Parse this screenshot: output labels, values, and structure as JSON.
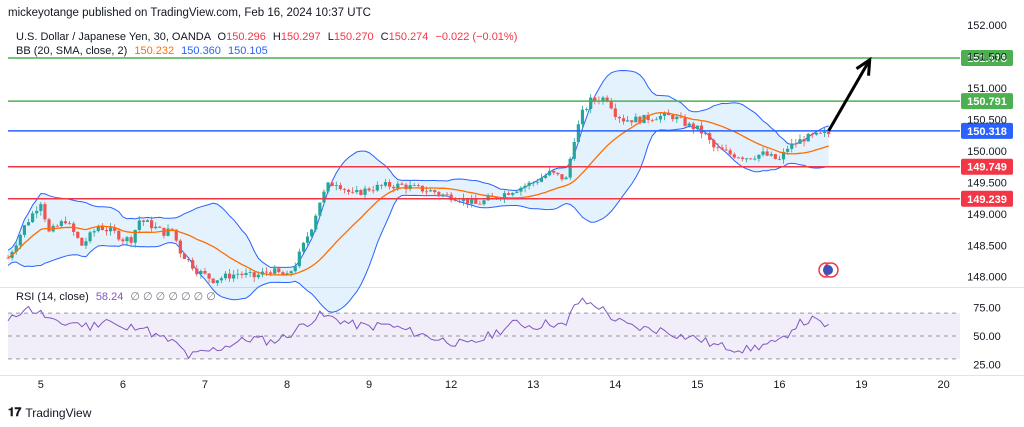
{
  "published": "mickeyotange published on TradingView.com, Feb 16, 2024 10:37 UTC",
  "legend": {
    "symbol": "U.S. Dollar / Japanese Yen, 30, OANDA",
    "ohlc": [
      {
        "k": "O",
        "v": "150.296"
      },
      {
        "k": "H",
        "v": "150.297"
      },
      {
        "k": "L",
        "v": "150.270"
      },
      {
        "k": "C",
        "v": "150.274"
      }
    ],
    "change": "−0.022 (−0.01%)",
    "bb_label": "BB (20, SMA, close, 2)",
    "bb_values": [
      "150.232",
      "150.360",
      "150.105"
    ],
    "rsi_label": "RSI (14, close)",
    "rsi_value": "58.24",
    "rsi_extra": "∅ ∅ ∅ ∅ ∅ ∅ ∅"
  },
  "footer": {
    "brand": "TradingView"
  },
  "colors": {
    "up": "#26a69a",
    "down": "#ef5350",
    "basis": "#ff6d00",
    "band": "#2962ff",
    "fill": "rgba(33,150,243,0.12)",
    "rsi": "#7e57c2",
    "rsi_fill": "rgba(126,87,194,0.10)",
    "green": "#4caf50",
    "blue": "#2962ff",
    "red": "#f23645",
    "arrow": "#000000",
    "grid": "#f0f3fa",
    "axis_text": "#131722"
  },
  "chart_data": {
    "type": "candlestick",
    "price_axis": {
      "ylim": [
        147.9,
        152.05
      ],
      "ticks": [
        "152.000",
        "151.500",
        "151.000",
        "150.500",
        "150.000",
        "149.500",
        "149.000",
        "148.500",
        "148.000"
      ]
    },
    "rsi_axis": {
      "ylim": [
        22,
        85
      ],
      "ticks": [
        "75.00",
        "50.00",
        "25.00"
      ],
      "overbought": 70,
      "oversold": 30
    },
    "x_labels": [
      "5",
      "6",
      "7",
      "8",
      "9",
      "12",
      "13",
      "14",
      "15",
      "16",
      "19",
      "20"
    ],
    "levels": [
      {
        "price": 151.478,
        "label": "151.478",
        "color": "green"
      },
      {
        "price": 150.791,
        "label": "150.791",
        "color": "green"
      },
      {
        "price": 150.318,
        "label": "150.318",
        "color": "blue"
      },
      {
        "price": 149.749,
        "label": "149.749",
        "color": "red"
      },
      {
        "price": 149.239,
        "label": "149.239",
        "color": "red"
      }
    ],
    "price_path": [
      [
        0,
        148.3
      ],
      [
        2,
        148.8
      ],
      [
        4,
        149.2
      ],
      [
        5,
        148.7
      ],
      [
        7,
        148.9
      ],
      [
        9,
        148.5
      ],
      [
        11,
        148.8
      ],
      [
        13,
        148.7
      ],
      [
        14,
        148.6
      ],
      [
        15,
        148.6
      ],
      [
        16,
        148.9
      ],
      [
        17,
        148.85
      ],
      [
        19,
        148.7
      ],
      [
        20,
        148.75
      ],
      [
        21,
        148.4
      ],
      [
        23,
        148.1
      ],
      [
        25,
        147.95
      ],
      [
        28,
        148.05
      ],
      [
        30,
        148.0
      ],
      [
        32,
        148.1
      ],
      [
        34,
        148.0
      ],
      [
        35,
        148.2
      ],
      [
        36,
        148.5
      ],
      [
        37,
        148.8
      ],
      [
        38,
        149.2
      ],
      [
        39,
        149.45
      ],
      [
        40,
        149.5
      ],
      [
        42,
        149.3
      ],
      [
        44,
        149.4
      ],
      [
        46,
        149.45
      ],
      [
        48,
        149.45
      ],
      [
        50,
        149.4
      ],
      [
        52,
        149.35
      ],
      [
        53,
        149.3
      ],
      [
        55,
        149.25
      ],
      [
        57,
        149.15
      ],
      [
        58,
        149.2
      ],
      [
        60,
        149.3
      ],
      [
        62,
        149.4
      ],
      [
        64,
        149.5
      ],
      [
        66,
        149.65
      ],
      [
        67,
        149.6
      ],
      [
        68,
        149.55
      ],
      [
        69,
        150.2
      ],
      [
        70,
        150.6
      ],
      [
        71,
        150.8
      ],
      [
        73,
        150.85
      ],
      [
        74,
        150.6
      ],
      [
        75,
        150.5
      ],
      [
        77,
        150.5
      ],
      [
        79,
        150.55
      ],
      [
        81,
        150.55
      ],
      [
        83,
        150.4
      ],
      [
        84,
        150.35
      ],
      [
        85,
        150.25
      ],
      [
        86,
        150.05
      ],
      [
        88,
        149.95
      ],
      [
        90,
        149.9
      ],
      [
        92,
        149.95
      ],
      [
        94,
        149.85
      ],
      [
        95,
        150.05
      ],
      [
        97,
        150.2
      ],
      [
        99,
        150.25
      ],
      [
        100,
        150.274
      ]
    ],
    "x_domain": [
      0,
      116
    ],
    "x_positions": [
      4,
      14,
      24,
      34,
      44,
      54,
      64,
      74,
      84,
      94,
      104,
      114
    ],
    "projection": {
      "from": [
        100,
        150.32
      ],
      "to": [
        105,
        151.45
      ]
    },
    "rsi_path": [
      [
        0,
        62
      ],
      [
        2,
        75
      ],
      [
        4,
        70
      ],
      [
        6,
        60
      ],
      [
        8,
        62
      ],
      [
        10,
        58
      ],
      [
        12,
        65
      ],
      [
        14,
        55
      ],
      [
        16,
        60
      ],
      [
        18,
        50
      ],
      [
        20,
        45
      ],
      [
        21,
        40
      ],
      [
        22,
        32
      ],
      [
        24,
        36
      ],
      [
        26,
        40
      ],
      [
        28,
        45
      ],
      [
        30,
        48
      ],
      [
        32,
        45
      ],
      [
        34,
        50
      ],
      [
        36,
        60
      ],
      [
        38,
        68
      ],
      [
        40,
        65
      ],
      [
        42,
        60
      ],
      [
        44,
        58
      ],
      [
        46,
        60
      ],
      [
        48,
        56
      ],
      [
        50,
        52
      ],
      [
        52,
        48
      ],
      [
        54,
        45
      ],
      [
        56,
        42
      ],
      [
        58,
        48
      ],
      [
        60,
        55
      ],
      [
        62,
        62
      ],
      [
        64,
        58
      ],
      [
        66,
        62
      ],
      [
        68,
        58
      ],
      [
        69,
        78
      ],
      [
        70,
        80
      ],
      [
        72,
        76
      ],
      [
        74,
        64
      ],
      [
        76,
        58
      ],
      [
        78,
        56
      ],
      [
        80,
        55
      ],
      [
        82,
        50
      ],
      [
        84,
        48
      ],
      [
        86,
        42
      ],
      [
        88,
        40
      ],
      [
        90,
        38
      ],
      [
        92,
        42
      ],
      [
        94,
        44
      ],
      [
        96,
        60
      ],
      [
        98,
        64
      ],
      [
        100,
        58.24
      ]
    ]
  }
}
